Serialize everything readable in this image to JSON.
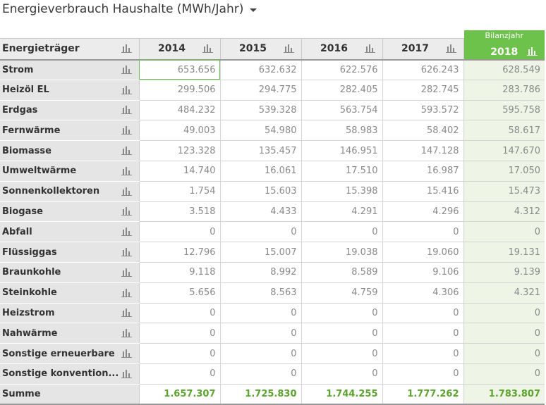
{
  "title": "Energieverbrauch Haushalte (MWh/Jahr)",
  "header": {
    "name_label": "Energieträger",
    "years": [
      "2014",
      "2015",
      "2016",
      "2017"
    ],
    "bilanz_label": "Bilanzjahr",
    "bilanz_year": "2018"
  },
  "rows": [
    {
      "name": "Strom",
      "values": [
        "653.656",
        "632.632",
        "622.576",
        "626.243"
      ],
      "bilanz": "628.549"
    },
    {
      "name": "Heizöl EL",
      "values": [
        "299.506",
        "294.775",
        "282.405",
        "282.745"
      ],
      "bilanz": "283.786"
    },
    {
      "name": "Erdgas",
      "values": [
        "484.232",
        "539.328",
        "563.754",
        "593.572"
      ],
      "bilanz": "595.758"
    },
    {
      "name": "Fernwärme",
      "values": [
        "49.003",
        "54.980",
        "58.983",
        "58.402"
      ],
      "bilanz": "58.617"
    },
    {
      "name": "Biomasse",
      "values": [
        "123.328",
        "135.457",
        "146.951",
        "147.128"
      ],
      "bilanz": "147.670"
    },
    {
      "name": "Umweltwärme",
      "values": [
        "14.740",
        "16.061",
        "17.510",
        "16.987"
      ],
      "bilanz": "17.050"
    },
    {
      "name": "Sonnenkollektoren",
      "values": [
        "1.754",
        "15.603",
        "15.398",
        "15.416"
      ],
      "bilanz": "15.473"
    },
    {
      "name": "Biogase",
      "values": [
        "3.518",
        "4.433",
        "4.291",
        "4.296"
      ],
      "bilanz": "4.312"
    },
    {
      "name": "Abfall",
      "values": [
        "0",
        "0",
        "0",
        "0"
      ],
      "bilanz": "0"
    },
    {
      "name": "Flüssiggas",
      "values": [
        "12.796",
        "15.007",
        "19.038",
        "19.060"
      ],
      "bilanz": "19.131"
    },
    {
      "name": "Braunkohle",
      "values": [
        "9.118",
        "8.992",
        "8.589",
        "9.106"
      ],
      "bilanz": "9.139"
    },
    {
      "name": "Steinkohle",
      "values": [
        "5.656",
        "8.563",
        "4.759",
        "4.306"
      ],
      "bilanz": "4.321"
    },
    {
      "name": "Heizstrom",
      "values": [
        "0",
        "0",
        "0",
        "0"
      ],
      "bilanz": "0"
    },
    {
      "name": "Nahwärme",
      "values": [
        "0",
        "0",
        "0",
        "0"
      ],
      "bilanz": "0"
    },
    {
      "name": "Sonstige erneuerbare",
      "values": [
        "0",
        "0",
        "0",
        "0"
      ],
      "bilanz": "0"
    },
    {
      "name": "Sonstige konvention...",
      "values": [
        "0",
        "0",
        "0",
        "0"
      ],
      "bilanz": "0"
    }
  ],
  "sum": {
    "name": "Summe",
    "values": [
      "1.657.307",
      "1.725.830",
      "1.744.255",
      "1.777.262"
    ],
    "bilanz": "1.783.807"
  },
  "colors": {
    "accent": "#6cc24a",
    "sum_text": "#5aa52b",
    "bilanz_bg": "#eef5e6",
    "header_bg": "#ececec",
    "name_bg": "#e5e5e5"
  },
  "icons": {
    "row_chart": "bar-chart-icon",
    "title_dropdown": "caret-down-icon"
  }
}
